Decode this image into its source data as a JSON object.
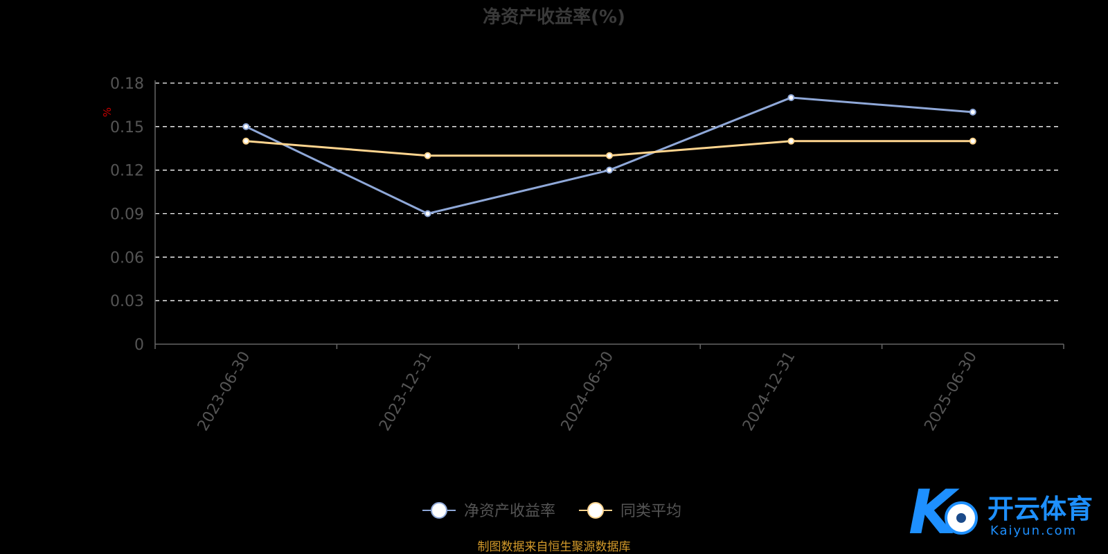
{
  "chart_data": {
    "type": "line",
    "title": "净资产收益率(%)",
    "ylabel": "%",
    "xlabel": "",
    "categories": [
      "2023-06-30",
      "2023-12-31",
      "2024-06-30",
      "2024-12-31",
      "2025-06-30"
    ],
    "y_ticks": [
      "0",
      "0.03",
      "0.06",
      "0.09",
      "0.12",
      "0.15",
      "0.18"
    ],
    "ylim": [
      0,
      0.18
    ],
    "grid": true,
    "legend_position": "bottom",
    "series": [
      {
        "name": "净资产收益率",
        "values": [
          0.15,
          0.09,
          0.12,
          0.17,
          0.16
        ],
        "color": "#8fa8d8"
      },
      {
        "name": "同类平均",
        "values": [
          0.14,
          0.13,
          0.13,
          0.14,
          0.14
        ],
        "color": "#ffd58f"
      }
    ]
  },
  "source_note": "制图数据来自恒生聚源数据库",
  "watermark": {
    "brand": "开云体育",
    "domain": "Kaiyun.com"
  },
  "colors": {
    "background": "#000000",
    "axis": "#666666",
    "tick_text": "#555555",
    "title": "#3a3a3a",
    "ylabel": "#cc0000",
    "source": "#d39a2a",
    "grid": "#ffffff"
  }
}
